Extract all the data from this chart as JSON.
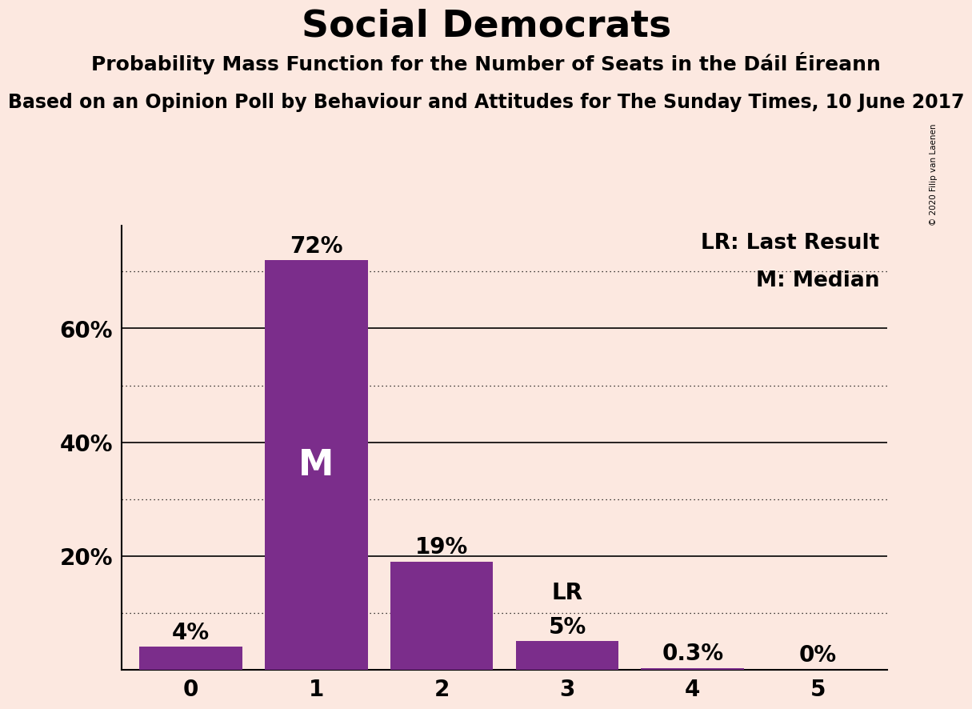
{
  "title": "Social Democrats",
  "subtitle1": "Probability Mass Function for the Number of Seats in the Dáil Éireann",
  "subtitle2": "Based on an Opinion Poll by Behaviour and Attitudes for The Sunday Times, 10 June 2017",
  "copyright": "© 2020 Filip van Laenen",
  "categories": [
    0,
    1,
    2,
    3,
    4,
    5
  ],
  "values": [
    4,
    72,
    19,
    5,
    0.3,
    0
  ],
  "bar_color": "#7b2d8b",
  "background_color": "#fce8e0",
  "bar_labels": [
    "4%",
    "72%",
    "19%",
    "5%",
    "0.3%",
    "0%"
  ],
  "median_bar": 1,
  "last_result_bar": 3,
  "median_label": "M",
  "last_result_label": "LR",
  "legend_lr": "LR: Last Result",
  "legend_m": "M: Median",
  "yticks": [
    20,
    40,
    60
  ],
  "ytick_labels": [
    "20%",
    "40%",
    "60%"
  ],
  "solid_gridlines": [
    20,
    40,
    60
  ],
  "dotted_gridlines": [
    10,
    30,
    50,
    70
  ],
  "ylim": [
    0,
    78
  ],
  "xlim": [
    -0.55,
    5.55
  ]
}
